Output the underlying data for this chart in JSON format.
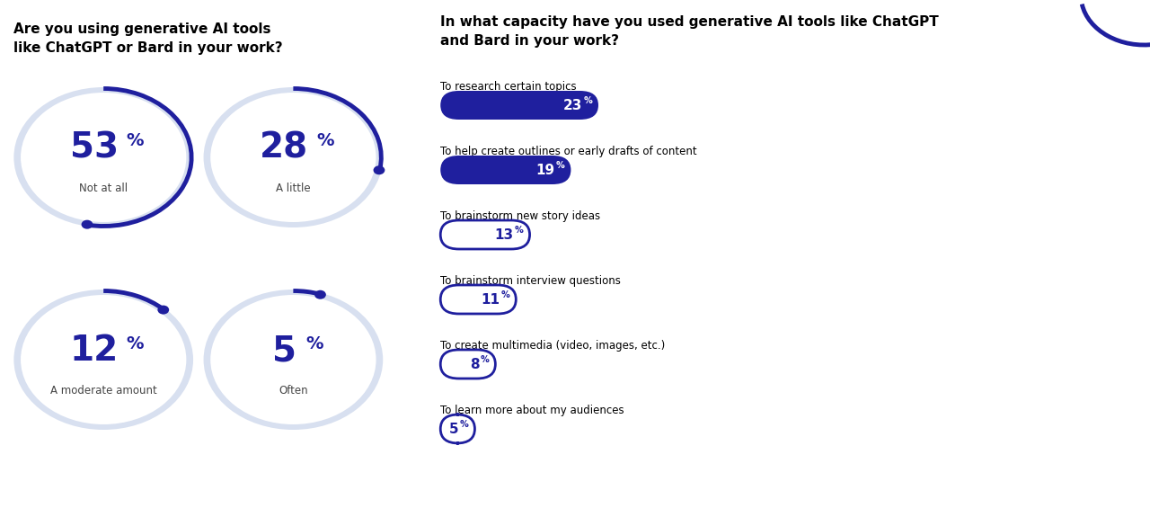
{
  "left_title": "Are you using generative AI tools\nlike ChatGPT or Bard in your work?",
  "right_title": "In what capacity have you used generative AI tools like ChatGPT\nand Bard in your work?",
  "donuts": [
    {
      "value": 53,
      "label": "Not at all"
    },
    {
      "value": 28,
      "label": "A little"
    },
    {
      "value": 12,
      "label": "A moderate amount"
    },
    {
      "value": 5,
      "label": "Often"
    }
  ],
  "bars": [
    {
      "label": "To research certain topics",
      "value": 23,
      "filled": true
    },
    {
      "label": "To help create outlines or early drafts of content",
      "value": 19,
      "filled": true
    },
    {
      "label": "To brainstorm new story ideas",
      "value": 13,
      "filled": false
    },
    {
      "label": "To brainstorm interview questions",
      "value": 11,
      "filled": false
    },
    {
      "label": "To create multimedia (video, images, etc.)",
      "value": 8,
      "filled": false
    },
    {
      "label": "To learn more about my audiences",
      "value": 5,
      "filled": false
    }
  ],
  "dark_blue": "#1f1f9e",
  "light_blue_bg": "#e8eef6",
  "circle_outline": "#d8e0f0",
  "white": "#ffffff",
  "bar_track_color": "#ffffff"
}
